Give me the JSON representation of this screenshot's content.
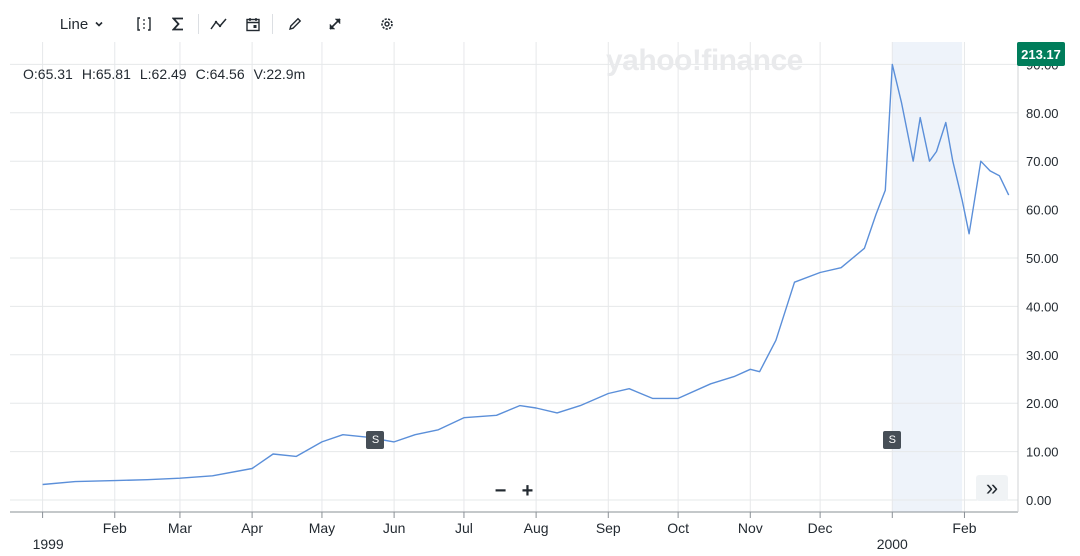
{
  "toolbar": {
    "chart_type_label": "Line",
    "icons": [
      "compare-icon",
      "indicators-icon",
      "trend-icon",
      "calendar-icon",
      "draw-icon",
      "expand-icon",
      "settings-icon"
    ]
  },
  "ohlc": {
    "open": "O:65.31",
    "high": "H:65.81",
    "low": "L:62.49",
    "close": "C:64.56",
    "volume": "V:22.9m"
  },
  "watermark": "yahoo!finance",
  "current_price": "213.17",
  "split_marker_label": "S",
  "chart_data": {
    "type": "line",
    "x_tick_labels": [
      "1999",
      "Feb",
      "Mar",
      "Apr",
      "May",
      "Jun",
      "Jul",
      "Aug",
      "Sep",
      "Oct",
      "Nov",
      "Dec",
      "2000",
      "Feb"
    ],
    "y_tick_labels": [
      "0.00",
      "10.00",
      "20.00",
      "30.00",
      "40.00",
      "50.00",
      "60.00",
      "70.00",
      "80.00",
      "90.00"
    ],
    "ylim": [
      0,
      100
    ],
    "grid": true,
    "highlight_range": [
      "2000-01-01",
      "2000-01-31"
    ],
    "split_markers": [
      {
        "date": "1999-05-24",
        "label": "S"
      },
      {
        "date": "2000-01-01",
        "label": "S"
      }
    ],
    "series": [
      {
        "color": "#5b8fd9",
        "x": [
          "1999-01-01",
          "1999-01-15",
          "1999-02-01",
          "1999-02-15",
          "1999-03-01",
          "1999-03-15",
          "1999-04-01",
          "1999-04-10",
          "1999-04-20",
          "1999-05-01",
          "1999-05-10",
          "1999-05-20",
          "1999-06-01",
          "1999-06-10",
          "1999-06-20",
          "1999-07-01",
          "1999-07-15",
          "1999-07-25",
          "1999-08-01",
          "1999-08-10",
          "1999-08-20",
          "1999-09-01",
          "1999-09-10",
          "1999-09-20",
          "1999-10-01",
          "1999-10-15",
          "1999-10-25",
          "1999-11-01",
          "1999-11-05",
          "1999-11-12",
          "1999-11-20",
          "1999-12-01",
          "1999-12-10",
          "1999-12-20",
          "1999-12-25",
          "1999-12-29",
          "2000-01-01",
          "2000-01-05",
          "2000-01-10",
          "2000-01-13",
          "2000-01-17",
          "2000-01-20",
          "2000-01-24",
          "2000-01-27",
          "2000-01-31",
          "2000-02-03",
          "2000-02-08",
          "2000-02-12",
          "2000-02-16",
          "2000-02-20"
        ],
        "values": [
          3.2,
          3.8,
          4.0,
          4.2,
          4.5,
          5.0,
          6.5,
          9.5,
          9.0,
          12.0,
          13.5,
          13.0,
          12.0,
          13.5,
          14.5,
          17.0,
          17.5,
          19.5,
          19.0,
          18.0,
          19.5,
          22.0,
          23.0,
          21.0,
          21.0,
          24.0,
          25.5,
          27.0,
          26.5,
          33.0,
          45.0,
          47.0,
          48.0,
          52.0,
          59.0,
          64.0,
          90.0,
          82.0,
          70.0,
          79.0,
          70.0,
          72.0,
          78.0,
          70.0,
          62.0,
          55.0,
          70.0,
          68.0,
          67.0,
          63.0
        ]
      }
    ]
  }
}
